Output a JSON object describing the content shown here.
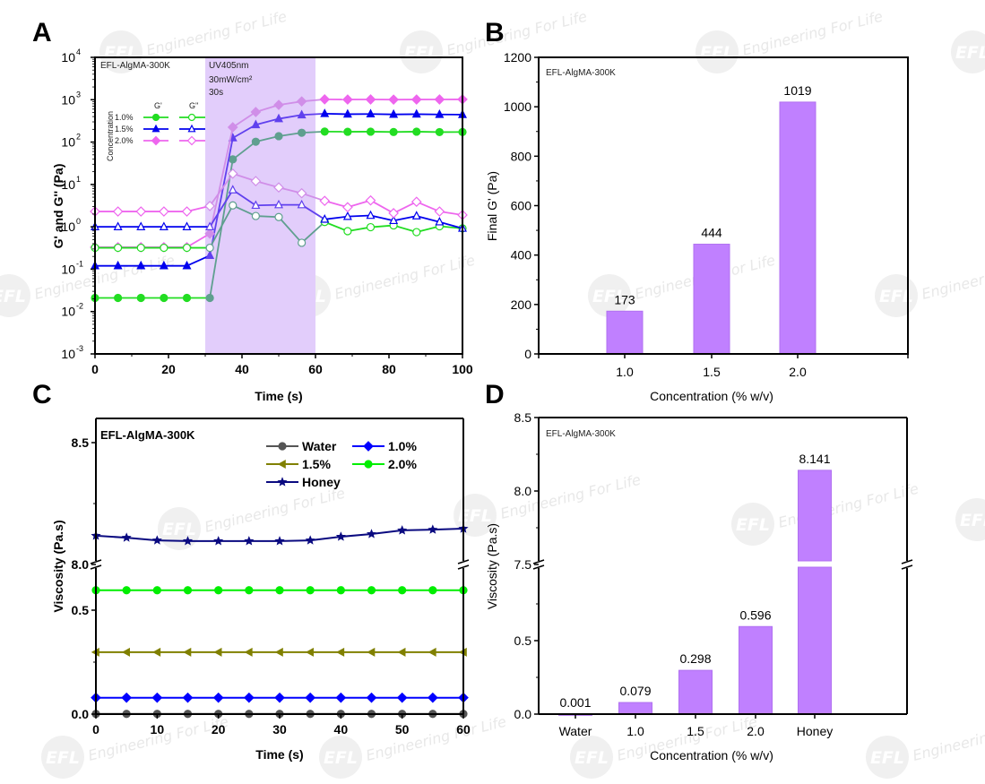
{
  "panels": {
    "A": {
      "letter": "A"
    },
    "B": {
      "letter": "B"
    },
    "C": {
      "letter": "C"
    },
    "D": {
      "letter": "D"
    }
  },
  "watermark": {
    "text": "Engineering For Life",
    "logo": "EFL"
  },
  "chart_data": [
    {
      "id": "A",
      "type": "line",
      "scale": "log",
      "title": "",
      "annotation": "EFL-AlgMA-300K",
      "uv_label": [
        "UV405nm",
        "30mW/cm²",
        "30s"
      ],
      "uv_window": [
        30,
        60
      ],
      "xlabel": "Time (s)",
      "ylabel": "G' and G'' (Pa)",
      "xlim": [
        0,
        100
      ],
      "ylim_exponent": [
        -3,
        4
      ],
      "xticks": [
        "0",
        "20",
        "40",
        "60",
        "80",
        "100"
      ],
      "xtick_values": [
        0,
        20,
        40,
        60,
        80,
        100
      ],
      "yticks": [
        "10",
        "10",
        "10",
        "10",
        "10",
        "10",
        "10",
        "10"
      ],
      "ytick_exponents": [
        "-3",
        "-2",
        "-1",
        "0",
        "1",
        "2",
        "3",
        "4"
      ],
      "ytick_values": [
        -3,
        -2,
        -1,
        0,
        1,
        2,
        3,
        4
      ],
      "legend": {
        "title": "Concentration",
        "col_headers": [
          "G'",
          "G''"
        ],
        "rows": [
          "1.0%",
          "1.5%",
          "2.0%"
        ]
      },
      "x": [
        0,
        6.25,
        12.5,
        18.75,
        25,
        31.25,
        37.5,
        43.75,
        50,
        56.25,
        62.5,
        68.75,
        75,
        81.25,
        87.5,
        93.75,
        100
      ],
      "series": [
        {
          "name": "1.0% G'",
          "color": "#22dd22",
          "marker": "circle",
          "filled": true,
          "values": [
            0.021,
            0.021,
            0.021,
            0.021,
            0.021,
            0.021,
            39,
            102,
            138,
            166,
            177,
            175,
            176,
            173,
            176,
            172,
            173
          ]
        },
        {
          "name": "1.5% G'",
          "color": "#0000ee",
          "marker": "triangle",
          "filled": true,
          "values": [
            0.12,
            0.12,
            0.12,
            0.12,
            0.12,
            0.21,
            125,
            256,
            355,
            437,
            468,
            455,
            460,
            450,
            455,
            448,
            444
          ]
        },
        {
          "name": "2.0% G'",
          "color": "#ee66ee",
          "marker": "diamond",
          "filled": true,
          "values": [
            0.33,
            0.33,
            0.33,
            0.33,
            0.33,
            0.69,
            224,
            513,
            754,
            912,
            1019,
            1010,
            1015,
            1005,
            1010,
            1015,
            1019
          ]
        },
        {
          "name": "1.0% G''",
          "color": "#22dd22",
          "marker": "circle",
          "filled": false,
          "values": [
            0.32,
            0.32,
            0.32,
            0.32,
            0.32,
            0.32,
            3.2,
            1.8,
            1.7,
            0.42,
            1.3,
            0.79,
            0.98,
            1.08,
            0.75,
            1.03,
            0.92
          ]
        },
        {
          "name": "1.5% G''",
          "color": "#0000ee",
          "marker": "triangle",
          "filled": false,
          "values": [
            1.0,
            1.0,
            1.0,
            1.0,
            1.0,
            1.0,
            7.4,
            3.2,
            3.3,
            3.3,
            1.5,
            1.75,
            1.85,
            1.4,
            1.8,
            1.3,
            0.92
          ]
        },
        {
          "name": "2.0% G''",
          "color": "#ee66ee",
          "marker": "diamond",
          "filled": false,
          "values": [
            2.3,
            2.3,
            2.3,
            2.3,
            2.3,
            3.1,
            18,
            12,
            8.5,
            6.2,
            4.1,
            2.9,
            4.2,
            2.1,
            3.9,
            2.3,
            1.9
          ]
        }
      ]
    },
    {
      "id": "B",
      "type": "bar",
      "annotation": "EFL-AlgMA-300K",
      "categories": [
        "1.0",
        "1.5",
        "2.0"
      ],
      "values": [
        173,
        444,
        1019
      ],
      "data_labels": [
        "173",
        "444",
        "1019"
      ],
      "xlabel": "Concentration (% w/v)",
      "ylabel": "Final G' (Pa)",
      "ylim": [
        0,
        1200
      ],
      "yticks": [
        "0",
        "200",
        "400",
        "600",
        "800",
        "1000",
        "1200"
      ],
      "ytick_values": [
        0,
        200,
        400,
        600,
        800,
        1000,
        1200
      ],
      "bar_color": "#c080ff"
    },
    {
      "id": "C",
      "type": "line",
      "annotation": "EFL-AlgMA-300K",
      "xlabel": "Time (s)",
      "ylabel": "Viscosity (Pa.s)",
      "xlim": [
        0,
        60
      ],
      "axis_break": {
        "lower": [
          0.0,
          0.6
        ],
        "upper": [
          8.0,
          8.55
        ]
      },
      "xticks": [
        "0",
        "10",
        "20",
        "30",
        "40",
        "50",
        "60"
      ],
      "xtick_values": [
        0,
        10,
        20,
        30,
        40,
        50,
        60
      ],
      "yticks": [
        "0.0",
        "0.5",
        "8.0",
        "8.5"
      ],
      "ytick_values": [
        0.0,
        0.5,
        8.0,
        8.5
      ],
      "legend": [
        "Water",
        "1.0%",
        "1.5%",
        "2.0%",
        "Honey"
      ],
      "x": [
        0,
        5,
        10,
        15,
        20,
        25,
        30,
        35,
        40,
        45,
        50,
        55,
        60
      ],
      "series": [
        {
          "name": "Water",
          "color": "#555555",
          "marker": "circle",
          "values": [
            0.001,
            0.001,
            0.001,
            0.001,
            0.001,
            0.001,
            0.001,
            0.001,
            0.001,
            0.001,
            0.001,
            0.001,
            0.001
          ]
        },
        {
          "name": "1.0%",
          "color": "#0000ff",
          "marker": "diamond",
          "values": [
            0.079,
            0.079,
            0.079,
            0.079,
            0.079,
            0.079,
            0.079,
            0.079,
            0.079,
            0.079,
            0.079,
            0.079,
            0.079
          ]
        },
        {
          "name": "1.5%",
          "color": "#808000",
          "marker": "triangle-left",
          "values": [
            0.298,
            0.298,
            0.298,
            0.298,
            0.298,
            0.298,
            0.298,
            0.298,
            0.298,
            0.298,
            0.298,
            0.298,
            0.298
          ]
        },
        {
          "name": "2.0%",
          "color": "#00ee00",
          "marker": "circle",
          "values": [
            0.596,
            0.596,
            0.596,
            0.596,
            0.596,
            0.596,
            0.596,
            0.596,
            0.596,
            0.596,
            0.596,
            0.596,
            0.596
          ]
        },
        {
          "name": "Honey",
          "color": "#0a0a80",
          "marker": "star",
          "values": [
            8.118,
            8.11,
            8.099,
            8.096,
            8.096,
            8.096,
            8.096,
            8.099,
            8.114,
            8.125,
            8.14,
            8.143,
            8.147
          ]
        }
      ]
    },
    {
      "id": "D",
      "type": "bar",
      "annotation": "EFL-AlgMA-300K",
      "categories": [
        "Water",
        "1.0",
        "1.5",
        "2.0",
        "Honey"
      ],
      "values": [
        0.001,
        0.079,
        0.298,
        0.596,
        8.141
      ],
      "data_labels": [
        "0.001",
        "0.079",
        "0.298",
        "0.596",
        "8.141"
      ],
      "xlabel": "Concentration (% w/v)",
      "ylabel": "Viscosity (Pa.s)",
      "axis_break": {
        "lower": [
          0.0,
          0.85
        ],
        "upper": [
          7.5,
          8.5
        ]
      },
      "yticks": [
        "0.0",
        "0.5",
        "7.5",
        "8.0",
        "8.5"
      ],
      "ytick_values": [
        0.0,
        0.5,
        7.5,
        8.0,
        8.5
      ],
      "bar_color": "#c080ff"
    }
  ]
}
